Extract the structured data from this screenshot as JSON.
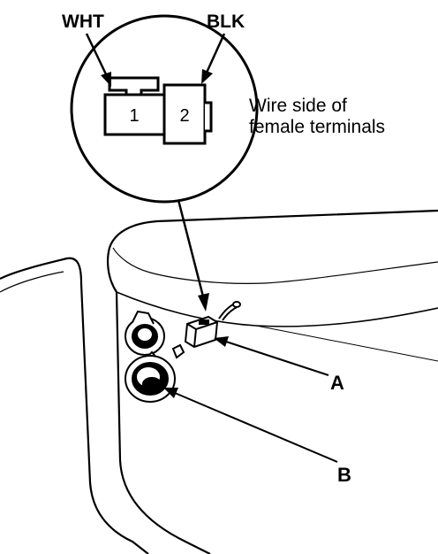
{
  "labels": {
    "wire_white": "WHT",
    "wire_black": "BLK",
    "terminal_1": "1",
    "terminal_2": "2",
    "caption_line1": "Wire side of",
    "caption_line2": "female terminals",
    "callout_a": "A",
    "callout_b": "B"
  },
  "colors": {
    "line": "#000000",
    "background": "#ffffff"
  }
}
